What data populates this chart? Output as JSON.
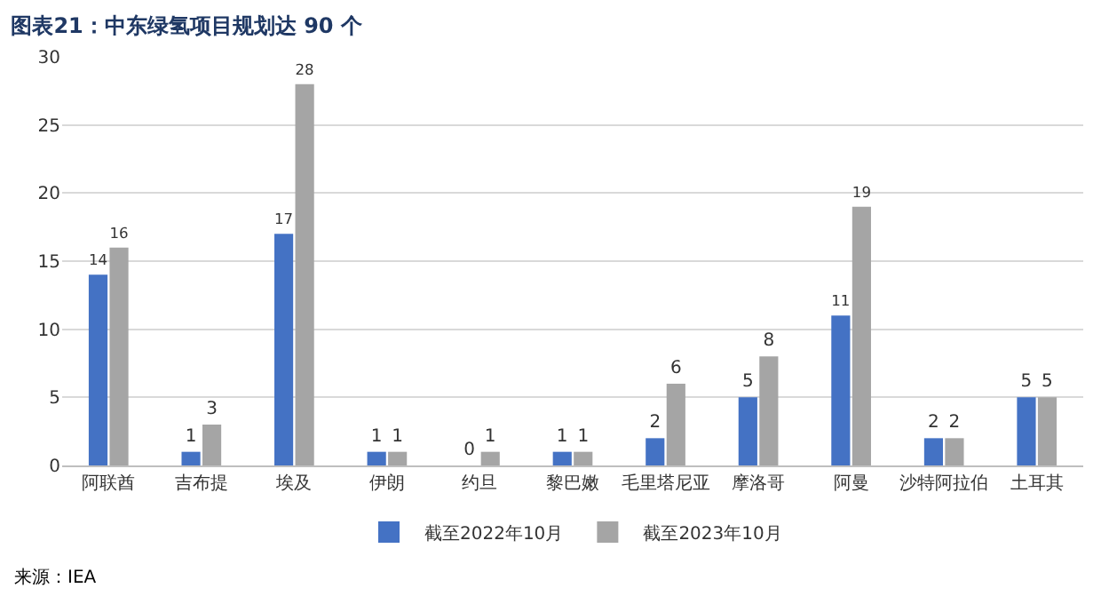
{
  "chart_data": {
    "type": "bar",
    "title": "图表21：中东绿氢项目规划达 90 个",
    "annotations": [
      "来源：IEA"
    ],
    "categories": [
      "阿联酋",
      "吉布提",
      "埃及",
      "伊朗",
      "约旦",
      "黎巴嫩",
      "毛里塔尼亚",
      "摩洛哥",
      "阿曼",
      "沙特阿拉伯",
      "土耳其"
    ],
    "series": [
      {
        "name": "截至2022年10月",
        "color": "#4472c4",
        "values": [
          14,
          1,
          17,
          1,
          0,
          1,
          2,
          5,
          11,
          2,
          5
        ]
      },
      {
        "name": "截至2023年10月",
        "color": "#a5a5a5",
        "values": [
          16,
          3,
          28,
          1,
          1,
          1,
          6,
          8,
          19,
          2,
          5
        ]
      }
    ],
    "ylim": [
      0,
      30
    ],
    "yticks": [
      0,
      5,
      10,
      15,
      20,
      25,
      30
    ],
    "grid": "y",
    "legend": "bottom",
    "data_labels": true
  }
}
